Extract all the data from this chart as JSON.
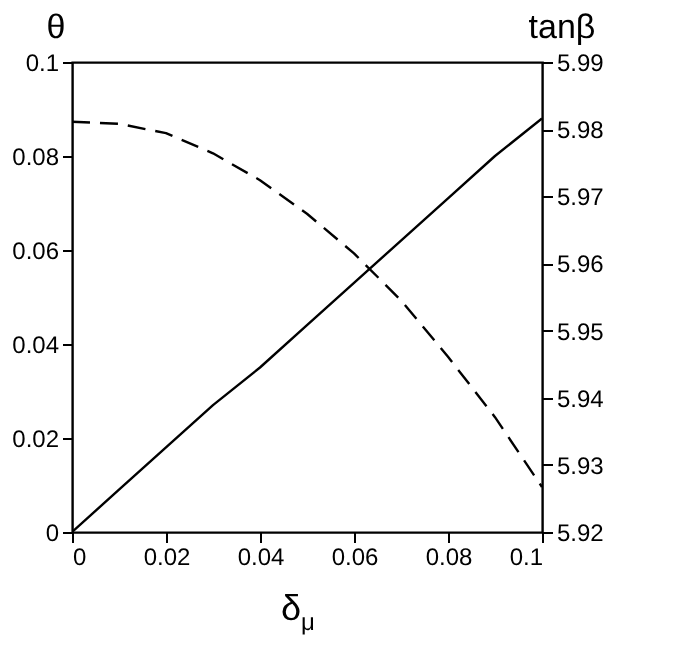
{
  "chart_data": {
    "type": "line",
    "xlabel": "δ$_{μ}$",
    "ylabel": "θ",
    "y2label": "tanβ",
    "x": [
      0,
      0.01,
      0.02,
      0.03,
      0.04,
      0.05,
      0.06,
      0.07,
      0.08,
      0.09,
      0.1
    ],
    "series": [
      {
        "color": "#000000",
        "line_style": "solid",
        "values": [
          0,
          0.009,
          0.018,
          0.027,
          0.035,
          0.044,
          0.053,
          0.062,
          0.071,
          0.08,
          0.088
        ]
      },
      {
        "color": "#000000",
        "line_style": "dashed",
        "axis": "y2",
        "values": [
          5.9811,
          5.9808,
          5.9794,
          5.9764,
          5.9724,
          5.9674,
          5.9615,
          5.9545,
          5.9461,
          5.9371,
          5.9267
        ]
      }
    ],
    "xlim": [
      0,
      0.1
    ],
    "xticks": [
      0,
      0.02,
      0.04,
      0.06,
      0.08,
      0.1
    ],
    "ylim": [
      0,
      0.1
    ],
    "yticks": [
      0,
      0.02,
      0.04,
      0.06,
      0.08,
      0.1
    ],
    "y2lim": [
      5.92,
      5.99
    ],
    "y2ticks": [
      5.92,
      5.93,
      5.94,
      5.95,
      5.96,
      5.97,
      5.98,
      5.99
    ],
    "grid": false
  }
}
